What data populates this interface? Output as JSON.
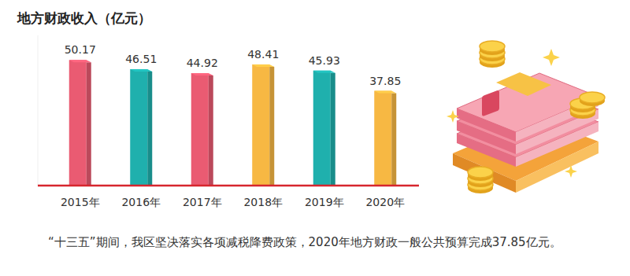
{
  "chart_data": {
    "type": "bar",
    "title": "地方财政收入（亿元）",
    "categories": [
      "2015年",
      "2016年",
      "2017年",
      "2018年",
      "2019年",
      "2020年"
    ],
    "values": [
      50.17,
      46.51,
      44.92,
      48.41,
      45.93,
      37.85
    ],
    "colors": [
      "#ea5b72",
      "#1fb0ad",
      "#ea5b72",
      "#f7b843",
      "#1fb0ad",
      "#f7b843"
    ],
    "ylim": [
      0,
      60
    ],
    "data_labels": true,
    "tick_labels": "x",
    "grid": false,
    "annotations": [
      "“十三五”期间，我区坚决落实各项减税降费政策，2020年地方财政一般公共预算完成37.85亿元。"
    ]
  }
}
